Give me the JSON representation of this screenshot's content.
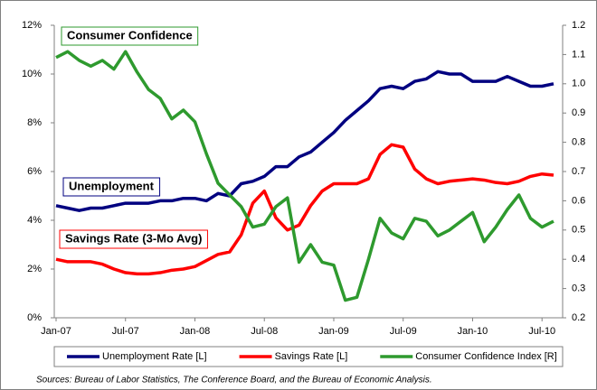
{
  "chart_data": {
    "type": "line",
    "categories": [
      "Jan-07",
      null,
      null,
      null,
      null,
      null,
      "Jul-07",
      null,
      null,
      null,
      null,
      null,
      "Jan-08",
      null,
      null,
      null,
      null,
      null,
      "Jul-08",
      null,
      null,
      null,
      null,
      null,
      "Jan-09",
      null,
      null,
      null,
      null,
      null,
      "Jul-09",
      null,
      null,
      null,
      null,
      null,
      "Jan-10",
      null,
      null,
      null,
      null,
      null,
      "Jul-10",
      null
    ],
    "series": [
      {
        "name": "Unemployment Rate [L]",
        "color": "#000080",
        "axis": "y",
        "values": [
          4.6,
          4.5,
          4.4,
          4.5,
          4.5,
          4.6,
          4.7,
          4.7,
          4.7,
          4.8,
          4.8,
          4.9,
          4.9,
          4.8,
          5.1,
          5.0,
          5.5,
          5.6,
          5.8,
          6.2,
          6.2,
          6.6,
          6.8,
          7.2,
          7.6,
          8.1,
          8.5,
          8.9,
          9.4,
          9.5,
          9.4,
          9.7,
          9.8,
          10.1,
          10.0,
          10.0,
          9.7,
          9.7,
          9.7,
          9.9,
          9.7,
          9.5,
          9.5,
          9.6
        ]
      },
      {
        "name": "Savings Rate [L]",
        "color": "#ff0000",
        "axis": "y",
        "values": [
          2.4,
          2.3,
          2.3,
          2.3,
          2.2,
          2.0,
          1.85,
          1.8,
          1.8,
          1.85,
          1.95,
          2.0,
          2.1,
          2.35,
          2.6,
          2.7,
          3.4,
          4.7,
          5.2,
          4.1,
          3.6,
          3.8,
          4.6,
          5.2,
          5.5,
          5.5,
          5.5,
          5.7,
          6.7,
          7.1,
          7.0,
          6.1,
          5.7,
          5.5,
          5.6,
          5.65,
          5.7,
          5.65,
          5.55,
          5.5,
          5.6,
          5.8,
          5.9,
          5.85
        ]
      },
      {
        "name": "Consumer Confidence Index [R]",
        "color": "#2e9a2e",
        "axis": "y2",
        "values": [
          1.09,
          1.11,
          1.08,
          1.06,
          1.08,
          1.05,
          1.11,
          1.04,
          0.98,
          0.95,
          0.88,
          0.91,
          0.87,
          0.76,
          0.66,
          0.62,
          0.58,
          0.51,
          0.52,
          0.58,
          0.61,
          0.39,
          0.45,
          0.39,
          0.38,
          0.26,
          0.27,
          0.4,
          0.54,
          0.49,
          0.47,
          0.54,
          0.53,
          0.48,
          0.5,
          0.53,
          0.56,
          0.46,
          0.51,
          0.57,
          0.62,
          0.54,
          0.51,
          0.53
        ]
      }
    ],
    "ylim": [
      0,
      12
    ],
    "yticks": [
      {
        "value": 0,
        "label": "0%"
      },
      {
        "value": 2,
        "label": "2%"
      },
      {
        "value": 4,
        "label": "4%"
      },
      {
        "value": 6,
        "label": "6%"
      },
      {
        "value": 8,
        "label": "8%"
      },
      {
        "value": 10,
        "label": "10%"
      },
      {
        "value": 12,
        "label": "12%"
      }
    ],
    "y2lim": [
      0.2,
      1.2
    ],
    "y2ticks": [
      0.2,
      0.3,
      0.4,
      0.5,
      0.6,
      0.7,
      0.8,
      0.9,
      {
        "value": 1.0,
        "label": "1.0"
      },
      1.1,
      1.2
    ],
    "grid": false,
    "legend": "bottom",
    "annotations": [
      {
        "text": "Consumer Confidence",
        "color": "#2e9a2e"
      },
      {
        "text": "Unemployment",
        "color": "#000080"
      },
      {
        "text": "Savings Rate (3-Mo Avg)",
        "color": "#ff0000"
      }
    ],
    "source": "Sources: Bureau of Labor Statistics, The Conference Board, and the Bureau of Economic Analysis."
  }
}
